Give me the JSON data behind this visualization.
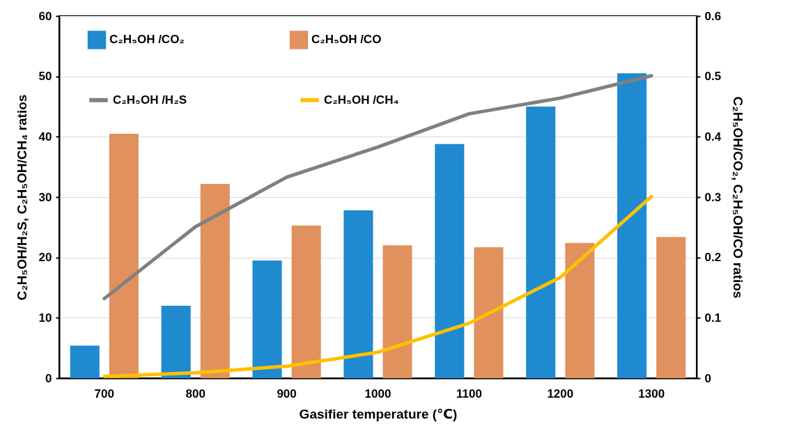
{
  "chart_data": {
    "type": "bar",
    "xlabel": "Gasifier temperature (℃)",
    "ylabel": "C₂H₅OH/H₂S, C₂H₅OH/CH₄  ratios",
    "y2label": "C₂H₅OH/CO₂, C₂H₅OH/CO ratios",
    "categories": [
      "700",
      "800",
      "900",
      "1000",
      "1100",
      "1200",
      "1300"
    ],
    "series": [
      {
        "name": "C₂H₅OH /CO₂",
        "axis": "y2",
        "color": "#1f8ad0",
        "values": [
          0.054,
          0.12,
          0.195,
          0.278,
          0.388,
          0.45,
          0.505
        ]
      },
      {
        "name": "C₂H₅OH /CO",
        "axis": "y2",
        "color": "#e0915e",
        "values": [
          0.405,
          0.322,
          0.253,
          0.22,
          0.217,
          0.224,
          0.234
        ]
      },
      {
        "name": "C₂H₅OH /H₂S",
        "type": "line",
        "axis": "y",
        "color": "#808080",
        "values": [
          13.2,
          25.1,
          33.3,
          38.3,
          43.8,
          46.4,
          50.1
        ]
      },
      {
        "name": "C₂H₅OH /CH₄",
        "type": "line",
        "axis": "y",
        "color": "#ffc000",
        "values": [
          0.3,
          0.9,
          2.0,
          4.3,
          9.1,
          16.7,
          30.1
        ]
      }
    ],
    "ylim": [
      0,
      60
    ],
    "yticks": [
      0,
      10,
      20,
      30,
      40,
      50,
      60
    ],
    "y2lim": [
      0,
      0.6
    ],
    "y2ticks": [
      0,
      0.1,
      0.2,
      0.3,
      0.4,
      0.5,
      0.6
    ],
    "grid": "y",
    "legend": "top left",
    "marker": "none",
    "line_style": "solid"
  }
}
